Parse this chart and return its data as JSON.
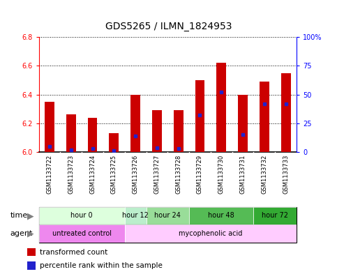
{
  "title": "GDS5265 / ILMN_1824953",
  "samples": [
    "GSM1133722",
    "GSM1133723",
    "GSM1133724",
    "GSM1133725",
    "GSM1133726",
    "GSM1133727",
    "GSM1133728",
    "GSM1133729",
    "GSM1133730",
    "GSM1133731",
    "GSM1133732",
    "GSM1133733"
  ],
  "transformed_count": [
    6.35,
    6.26,
    6.24,
    6.13,
    6.4,
    6.29,
    6.29,
    6.5,
    6.62,
    6.4,
    6.49,
    6.55
  ],
  "percentile_rank": [
    5,
    2,
    3,
    1,
    14,
    4,
    3,
    32,
    52,
    15,
    42,
    42
  ],
  "ylim_left": [
    6.0,
    6.8
  ],
  "ylim_right": [
    0,
    100
  ],
  "yticks_left": [
    6.0,
    6.2,
    6.4,
    6.6,
    6.8
  ],
  "yticks_right": [
    0,
    25,
    50,
    75,
    100
  ],
  "ytick_labels_right": [
    "0",
    "25",
    "50",
    "75",
    "100%"
  ],
  "bar_color": "#cc0000",
  "percentile_color": "#2222cc",
  "xlabels_bg": "#cccccc",
  "time_groups": [
    {
      "label": "hour 0",
      "indices": [
        0,
        1,
        2,
        3
      ],
      "color": "#ddffdd"
    },
    {
      "label": "hour 12",
      "indices": [
        4
      ],
      "color": "#bbeecc"
    },
    {
      "label": "hour 24",
      "indices": [
        5,
        6
      ],
      "color": "#99dd99"
    },
    {
      "label": "hour 48",
      "indices": [
        7,
        8,
        9
      ],
      "color": "#55bb55"
    },
    {
      "label": "hour 72",
      "indices": [
        10,
        11
      ],
      "color": "#33aa33"
    }
  ],
  "agent_groups": [
    {
      "label": "untreated control",
      "indices": [
        0,
        1,
        2,
        3
      ],
      "color": "#ee88ee"
    },
    {
      "label": "mycophenolic acid",
      "indices": [
        4,
        5,
        6,
        7,
        8,
        9,
        10,
        11
      ],
      "color": "#ffccff"
    }
  ],
  "legend_items": [
    {
      "label": "transformed count",
      "color": "#cc0000"
    },
    {
      "label": "percentile rank within the sample",
      "color": "#2222cc"
    }
  ],
  "time_label": "time",
  "agent_label": "agent",
  "bg_color": "#ffffff",
  "bar_width": 0.45
}
